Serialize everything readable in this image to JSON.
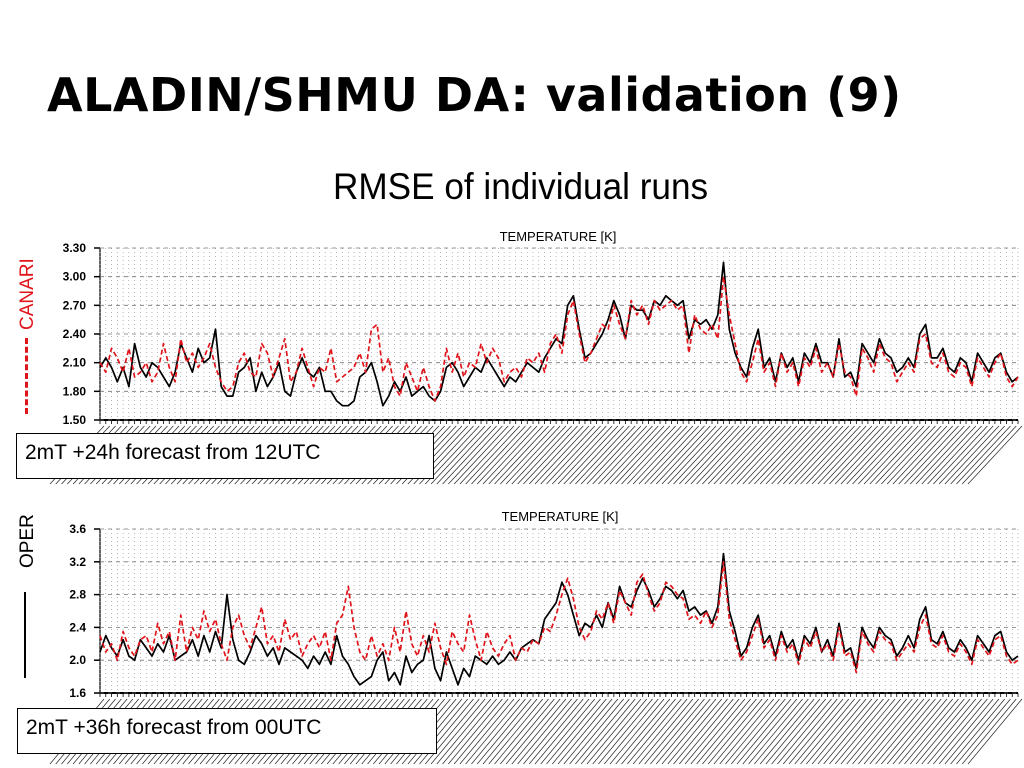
{
  "slide": {
    "title": "ALADIN/SHMU DA: validation (9)",
    "subtitle": "RMSE of individual runs"
  },
  "legend": {
    "canari": {
      "label": "CANARI",
      "color": "#e0151b",
      "style": "dashed"
    },
    "oper": {
      "label": "OPER",
      "color": "#000000",
      "style": "solid"
    }
  },
  "chart_data": [
    {
      "type": "line",
      "title": "TEMPERATURE [K]",
      "annotation": "2mT +24h forecast from 12UTC",
      "ylim": [
        1.5,
        3.3
      ],
      "yticks": [
        "3.30",
        "3.00",
        "2.70",
        "2.40",
        "2.10",
        "1.80",
        "1.50"
      ],
      "grid": true,
      "x": "daily runs (date tick labels not legible)",
      "series": [
        {
          "name": "CANARI",
          "color": "#e0151b",
          "dashed": true,
          "values": [
            2.1,
            2.0,
            2.25,
            2.15,
            2.0,
            2.25,
            1.95,
            2.0,
            2.1,
            1.9,
            2.0,
            2.3,
            2.05,
            1.9,
            2.35,
            2.1,
            2.2,
            2.05,
            2.15,
            2.3,
            2.05,
            1.9,
            1.8,
            1.85,
            2.1,
            2.2,
            2.0,
            1.95,
            2.3,
            2.2,
            1.95,
            2.15,
            2.35,
            1.9,
            2.0,
            2.25,
            2.05,
            1.85,
            2.05,
            2.0,
            2.25,
            1.9,
            1.95,
            2.0,
            2.05,
            2.2,
            2.0,
            2.45,
            2.5,
            2.0,
            2.15,
            1.85,
            1.75,
            2.1,
            1.95,
            1.8,
            2.05,
            1.85,
            1.7,
            1.85,
            2.25,
            2.0,
            2.2,
            1.95,
            2.1,
            2.05,
            2.3,
            2.1,
            2.25,
            2.15,
            1.9,
            2.0,
            2.05,
            1.95,
            2.15,
            2.1,
            2.2,
            2.0,
            2.3,
            2.4,
            2.2,
            2.6,
            2.75,
            2.4,
            2.1,
            2.2,
            2.35,
            2.5,
            2.45,
            2.7,
            2.5,
            2.35,
            2.75,
            2.6,
            2.7,
            2.5,
            2.75,
            2.65,
            2.7,
            2.75,
            2.65,
            2.7,
            2.2,
            2.6,
            2.45,
            2.4,
            2.5,
            2.35,
            3.0,
            2.6,
            2.3,
            2.0,
            1.9,
            2.1,
            2.35,
            2.0,
            2.1,
            1.85,
            2.2,
            2.0,
            2.1,
            1.85,
            2.15,
            2.05,
            2.25,
            2.0,
            2.1,
            1.95,
            2.3,
            2.0,
            1.95,
            1.75,
            2.25,
            2.15,
            2.0,
            2.3,
            2.15,
            2.1,
            1.9,
            2.0,
            2.1,
            2.0,
            2.35,
            2.4,
            2.1,
            2.05,
            2.2,
            2.0,
            1.95,
            2.1,
            2.05,
            1.85,
            2.15,
            2.05,
            1.95,
            2.1,
            2.2,
            1.95,
            1.85,
            1.95
          ]
        },
        {
          "name": "OPER",
          "color": "#000000",
          "dashed": false,
          "values": [
            2.05,
            2.15,
            2.05,
            1.9,
            2.05,
            1.85,
            2.3,
            2.05,
            1.95,
            2.1,
            2.05,
            1.95,
            1.85,
            2.0,
            2.3,
            2.15,
            2.0,
            2.25,
            2.1,
            2.15,
            2.45,
            1.85,
            1.75,
            1.75,
            2.0,
            2.05,
            2.15,
            1.8,
            2.0,
            1.85,
            1.95,
            2.1,
            1.8,
            1.75,
            2.0,
            2.15,
            2.0,
            1.95,
            2.05,
            1.8,
            1.8,
            1.7,
            1.65,
            1.65,
            1.7,
            1.95,
            2.0,
            2.1,
            1.9,
            1.65,
            1.75,
            1.9,
            1.8,
            1.95,
            1.75,
            1.8,
            1.85,
            1.75,
            1.7,
            1.8,
            2.05,
            2.1,
            2.0,
            1.85,
            1.95,
            2.05,
            2.0,
            2.15,
            2.05,
            1.95,
            1.85,
            1.95,
            1.9,
            2.0,
            2.1,
            2.05,
            2.0,
            2.15,
            2.25,
            2.35,
            2.3,
            2.7,
            2.8,
            2.45,
            2.15,
            2.2,
            2.3,
            2.4,
            2.55,
            2.75,
            2.6,
            2.35,
            2.7,
            2.65,
            2.65,
            2.55,
            2.75,
            2.7,
            2.8,
            2.75,
            2.7,
            2.75,
            2.35,
            2.55,
            2.5,
            2.55,
            2.45,
            2.6,
            3.15,
            2.45,
            2.2,
            2.05,
            1.95,
            2.25,
            2.45,
            2.05,
            2.15,
            1.9,
            2.2,
            2.05,
            2.15,
            1.9,
            2.2,
            2.1,
            2.3,
            2.1,
            2.1,
            1.95,
            2.35,
            1.95,
            2.0,
            1.85,
            2.3,
            2.2,
            2.1,
            2.35,
            2.2,
            2.15,
            2.0,
            2.05,
            2.15,
            2.05,
            2.4,
            2.5,
            2.15,
            2.15,
            2.25,
            2.05,
            2.0,
            2.15,
            2.1,
            1.9,
            2.2,
            2.1,
            2.0,
            2.15,
            2.2,
            2.0,
            1.9,
            1.95
          ]
        }
      ]
    },
    {
      "type": "line",
      "title": "TEMPERATURE [K]",
      "annotation": "2mT +36h forecast from 00UTC",
      "ylim": [
        1.6,
        3.6
      ],
      "yticks": [
        "3.6",
        "3.2",
        "2.8",
        "2.4",
        "2.0",
        "1.6"
      ],
      "grid": true,
      "x": "daily runs (date tick labels not legible)",
      "series": [
        {
          "name": "CANARI",
          "color": "#e0151b",
          "dashed": true,
          "values": [
            2.3,
            2.1,
            2.2,
            2.0,
            2.35,
            2.15,
            2.05,
            2.25,
            2.3,
            2.1,
            2.45,
            2.2,
            2.35,
            2.0,
            2.55,
            2.1,
            2.4,
            2.25,
            2.6,
            2.35,
            2.5,
            2.2,
            2.0,
            2.4,
            2.55,
            2.3,
            2.15,
            2.4,
            2.65,
            2.2,
            2.3,
            2.1,
            2.5,
            2.25,
            2.35,
            2.05,
            2.2,
            2.3,
            2.15,
            2.35,
            2.0,
            2.45,
            2.55,
            2.9,
            2.4,
            2.1,
            2.0,
            2.3,
            2.05,
            2.2,
            2.0,
            2.4,
            2.1,
            2.6,
            2.2,
            2.05,
            2.3,
            2.1,
            2.45,
            2.15,
            1.95,
            2.35,
            2.2,
            2.1,
            2.55,
            2.25,
            2.0,
            2.35,
            2.15,
            2.05,
            2.2,
            2.3,
            2.0,
            2.15,
            2.1,
            2.25,
            2.2,
            2.4,
            2.35,
            2.55,
            2.8,
            3.0,
            2.75,
            2.4,
            2.25,
            2.35,
            2.6,
            2.5,
            2.7,
            2.45,
            2.85,
            2.7,
            2.55,
            2.95,
            3.05,
            2.8,
            2.6,
            2.7,
            2.95,
            2.9,
            2.8,
            2.75,
            2.5,
            2.55,
            2.45,
            2.6,
            2.4,
            2.55,
            3.2,
            2.5,
            2.25,
            2.0,
            2.1,
            2.3,
            2.5,
            2.15,
            2.25,
            2.0,
            2.3,
            2.1,
            2.2,
            1.95,
            2.25,
            2.15,
            2.35,
            2.1,
            2.2,
            2.0,
            2.4,
            2.05,
            2.1,
            1.85,
            2.35,
            2.2,
            2.1,
            2.35,
            2.25,
            2.2,
            2.0,
            2.1,
            2.2,
            2.1,
            2.4,
            2.55,
            2.2,
            2.15,
            2.3,
            2.1,
            2.05,
            2.2,
            2.1,
            1.95,
            2.25,
            2.15,
            2.05,
            2.25,
            2.3,
            2.05,
            1.95,
            2.0
          ]
        },
        {
          "name": "OPER",
          "color": "#000000",
          "dashed": false,
          "values": [
            2.1,
            2.3,
            2.15,
            2.05,
            2.25,
            2.05,
            2.0,
            2.25,
            2.15,
            2.05,
            2.2,
            2.1,
            2.3,
            2.0,
            2.05,
            2.1,
            2.25,
            2.05,
            2.3,
            2.1,
            2.35,
            2.15,
            2.8,
            2.25,
            2.0,
            1.95,
            2.1,
            2.3,
            2.2,
            2.05,
            2.15,
            1.95,
            2.15,
            2.1,
            2.05,
            2.0,
            1.9,
            2.05,
            1.95,
            2.1,
            1.95,
            2.3,
            2.05,
            1.95,
            1.8,
            1.7,
            1.75,
            1.8,
            2.0,
            2.1,
            1.75,
            1.85,
            1.7,
            2.05,
            1.85,
            1.95,
            2.0,
            2.3,
            1.9,
            1.75,
            2.1,
            1.9,
            1.7,
            1.9,
            1.8,
            2.05,
            2.0,
            1.95,
            2.05,
            1.95,
            2.0,
            2.1,
            2.0,
            2.15,
            2.2,
            2.25,
            2.2,
            2.5,
            2.6,
            2.7,
            2.95,
            2.8,
            2.55,
            2.3,
            2.45,
            2.4,
            2.55,
            2.4,
            2.7,
            2.5,
            2.9,
            2.7,
            2.65,
            2.85,
            3.0,
            2.85,
            2.65,
            2.75,
            2.9,
            2.85,
            2.75,
            2.85,
            2.6,
            2.65,
            2.55,
            2.6,
            2.45,
            2.65,
            3.3,
            2.6,
            2.35,
            2.05,
            2.15,
            2.4,
            2.55,
            2.2,
            2.3,
            2.05,
            2.35,
            2.15,
            2.25,
            2.0,
            2.3,
            2.2,
            2.4,
            2.1,
            2.25,
            2.05,
            2.45,
            2.1,
            2.15,
            1.9,
            2.4,
            2.25,
            2.15,
            2.4,
            2.3,
            2.25,
            2.05,
            2.15,
            2.3,
            2.15,
            2.5,
            2.65,
            2.25,
            2.2,
            2.35,
            2.15,
            2.1,
            2.25,
            2.15,
            2.0,
            2.3,
            2.2,
            2.1,
            2.3,
            2.35,
            2.1,
            2.0,
            2.05
          ]
        }
      ]
    }
  ]
}
